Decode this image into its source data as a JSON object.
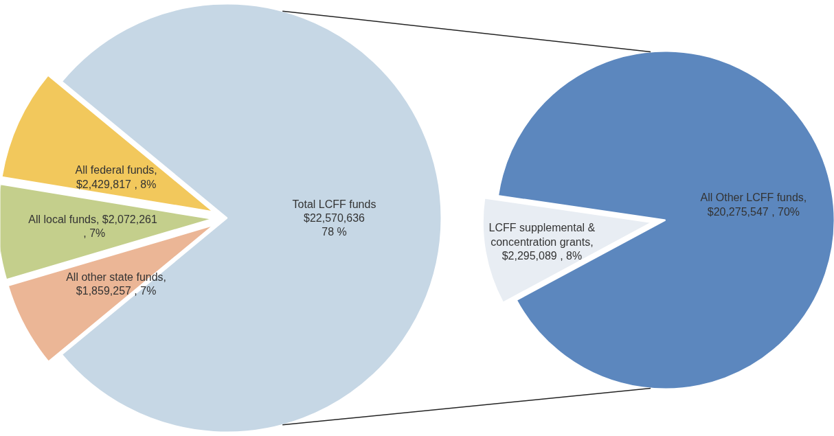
{
  "chart_data": [
    {
      "type": "pie",
      "categories": [
        "Total LCFF funds",
        "All federal funds",
        "All local funds",
        "All other state funds"
      ],
      "values": [
        22570636,
        2429817,
        2072261,
        1859257
      ],
      "colors": [
        "#c6d7e5",
        "#f2c85c",
        "#c4cf8c",
        "#ebb696"
      ],
      "value_labels": [
        "$22,570,636\n78 %",
        ",\n$2,429,817 , 8%",
        ",  $2,072,261\n, 7%",
        ",\n$1,859,257 , 7%"
      ]
    },
    {
      "type": "pie",
      "categories": [
        "All Other LCFF funds",
        "LCFF supplemental & concentration grants"
      ],
      "values": [
        20275547,
        2295089
      ],
      "colors": [
        "#5c87be",
        "#e8edf3"
      ],
      "value_labels": [
        ",\n$20,275,547 , 70%",
        ",\n$2,295,089 , 8%"
      ]
    }
  ]
}
